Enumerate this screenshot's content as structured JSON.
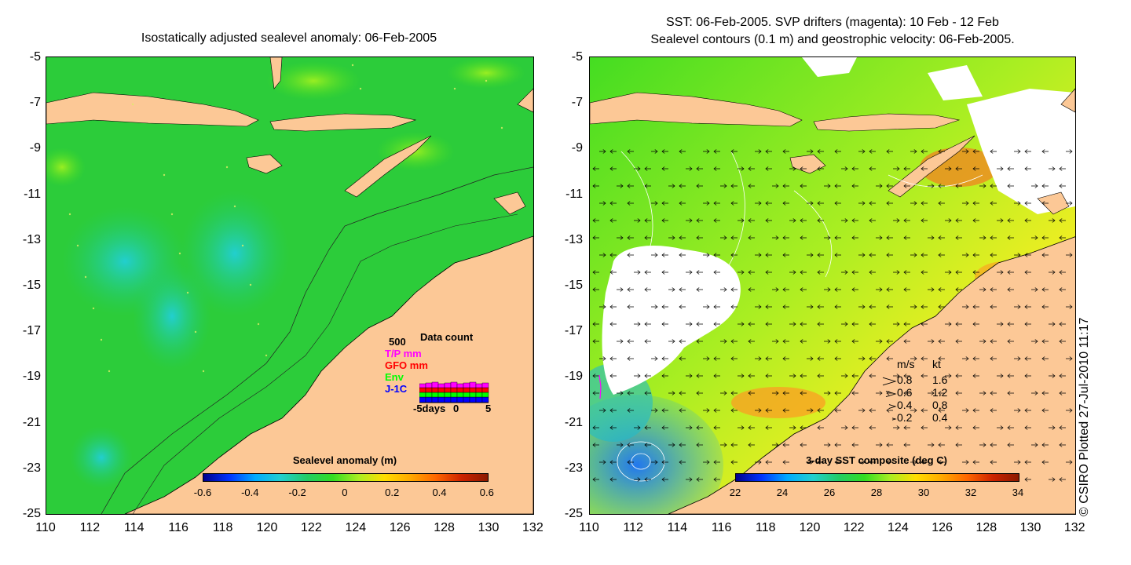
{
  "left": {
    "title": "Isostatically adjusted sealevel anomaly: 06-Feb-2005",
    "colorbar": {
      "title": "Sealevel anomaly (m)",
      "ticks": [
        "-0.6",
        "-0.4",
        "-0.2",
        "0",
        "0.2",
        "0.4",
        "0.6"
      ]
    },
    "inset": {
      "title": "Data count",
      "ymax": "500",
      "series": [
        {
          "name": "T/P mm",
          "color": "#ff00ff"
        },
        {
          "name": "GFO mm",
          "color": "#ff0000"
        },
        {
          "name": "Env",
          "color": "#00ff00"
        },
        {
          "name": "J-1C",
          "color": "#0000ff"
        }
      ],
      "xlabel_left": "-5days",
      "xlabel_mid": "0",
      "xlabel_right": "5"
    }
  },
  "right": {
    "title_line1": "SST: 06-Feb-2005. SVP drifters (magenta): 10 Feb - 12 Feb",
    "title_line2": "Sealevel contours (0.1 m) and geostrophic velocity: 06-Feb-2005.",
    "colorbar": {
      "title": "3-day SST composite (deg C)",
      "ticks": [
        "22",
        "24",
        "26",
        "28",
        "30",
        "32",
        "34"
      ]
    },
    "speed_legend": {
      "header_ms": "m/s",
      "header_kt": "kt",
      "rows": [
        {
          "ms": "0.8",
          "kt": "1.6"
        },
        {
          "ms": "0.6",
          "kt": "1.2"
        },
        {
          "ms": "0.4",
          "kt": "0.8"
        },
        {
          "ms": "0.2",
          "kt": "0.4"
        }
      ]
    }
  },
  "axes": {
    "y_ticks": [
      "-5",
      "-7",
      "-9",
      "-11",
      "-13",
      "-15",
      "-17",
      "-19",
      "-21",
      "-23",
      "-25"
    ],
    "x_ticks": [
      "110",
      "112",
      "114",
      "116",
      "118",
      "120",
      "122",
      "124",
      "126",
      "128",
      "130",
      "132"
    ]
  },
  "credit": "© CSIRO Plotted 27-Jul-2010 11:17",
  "colors": {
    "land": "#fcc896",
    "sea_base": "#22cc33"
  }
}
